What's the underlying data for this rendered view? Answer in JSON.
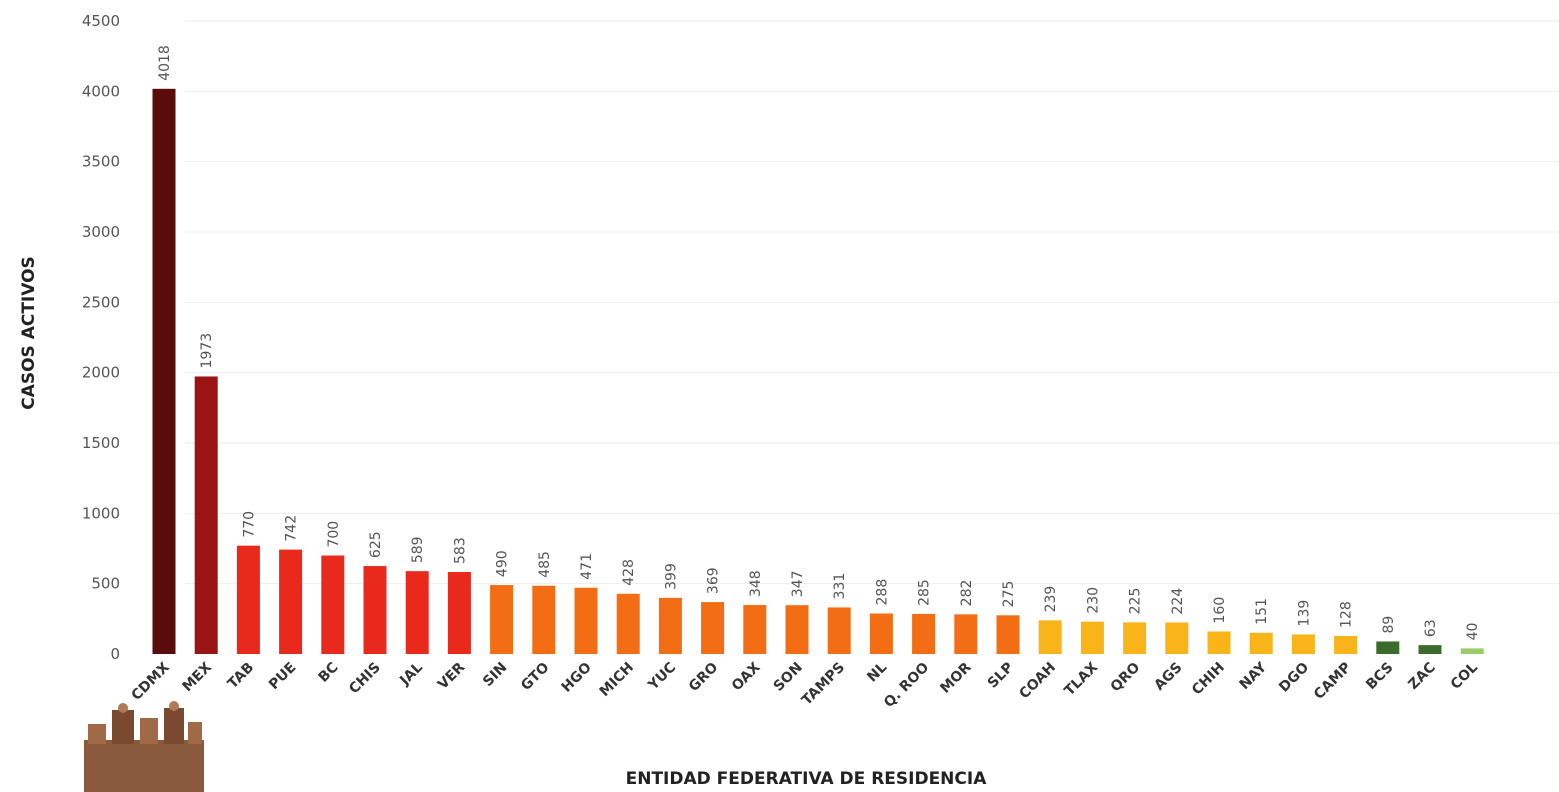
{
  "chart_data": {
    "type": "bar",
    "xlabel": "ENTIDAD FEDERATIVA DE  RESIDENCIA",
    "ylabel": "CASOS ACTIVOS",
    "ylim": [
      0,
      4500
    ],
    "yticks": [
      0,
      500,
      1000,
      1500,
      2000,
      2500,
      3000,
      3500,
      4000,
      4500
    ],
    "grid": true,
    "categories": [
      "CDMX",
      "MEX",
      "TAB",
      "PUE",
      "BC",
      "CHIS",
      "JAL",
      "VER",
      "SIN",
      "GTO",
      "HGO",
      "MICH",
      "YUC",
      "GRO",
      "OAX",
      "SON",
      "TAMPS",
      "NL",
      "Q. ROO",
      "MOR",
      "SLP",
      "COAH",
      "TLAX",
      "QRO",
      "AGS",
      "CHIH",
      "NAY",
      "DGO",
      "CAMP",
      "BCS",
      "ZAC",
      "COL"
    ],
    "values": [
      4018,
      1973,
      770,
      742,
      700,
      625,
      589,
      583,
      490,
      485,
      471,
      428,
      399,
      369,
      348,
      347,
      331,
      288,
      285,
      282,
      275,
      239,
      230,
      225,
      224,
      160,
      151,
      139,
      128,
      89,
      63,
      40
    ],
    "colors": [
      "#5a0c0c",
      "#9b1414",
      "#e8291c",
      "#e8291c",
      "#e8291c",
      "#e8291c",
      "#e8291c",
      "#e8291c",
      "#f26d13",
      "#f26d13",
      "#f26d13",
      "#f26d13",
      "#f26d13",
      "#f26d13",
      "#f26d13",
      "#f26d13",
      "#f26d13",
      "#f26d13",
      "#f26d13",
      "#f26d13",
      "#f26d13",
      "#f8b418",
      "#f8b418",
      "#f8b418",
      "#f8b418",
      "#f8b418",
      "#f8b418",
      "#f8b418",
      "#f8b418",
      "#3c6b2c",
      "#3c6b2c",
      "#9ccc6a"
    ]
  }
}
